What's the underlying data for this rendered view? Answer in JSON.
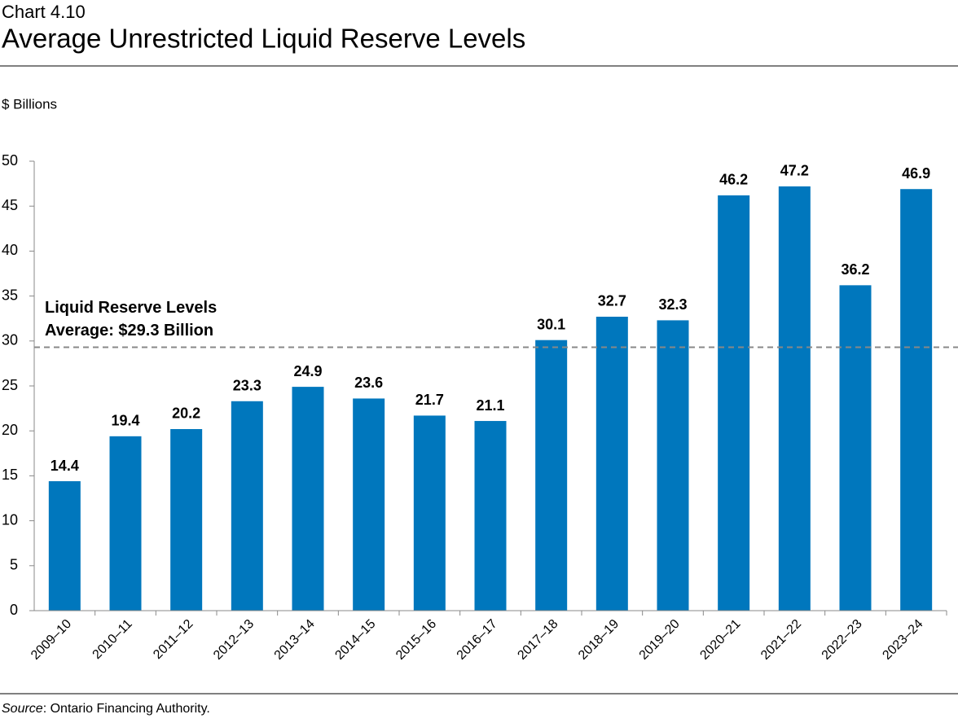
{
  "chart_data": {
    "type": "bar",
    "supertitle": "Chart 4.10",
    "title": "Average Unrestricted Liquid Reserve Levels",
    "y_axis_label": "$ Billions",
    "categories": [
      "2009–10",
      "2010–11",
      "2011–12",
      "2012–13",
      "2013–14",
      "2014–15",
      "2015–16",
      "2016–17",
      "2017–18",
      "2018–19",
      "2019–20",
      "2020–21",
      "2021–22",
      "2022–23",
      "2023–24"
    ],
    "values": [
      14.4,
      19.4,
      20.2,
      23.3,
      24.9,
      23.6,
      21.7,
      21.1,
      30.1,
      32.7,
      32.3,
      46.2,
      47.2,
      36.2,
      46.9
    ],
    "color": "#0077bd",
    "ylim": [
      0,
      50
    ],
    "yticks": [
      0,
      5,
      10,
      15,
      20,
      25,
      30,
      35,
      40,
      45,
      50
    ],
    "grid": false,
    "average": 29.3,
    "average_annotation": [
      "Liquid Reserve Levels",
      "Average: $29.3 Billion"
    ],
    "source_label": "Source",
    "source_text": ": Ontario Financing Authority."
  }
}
